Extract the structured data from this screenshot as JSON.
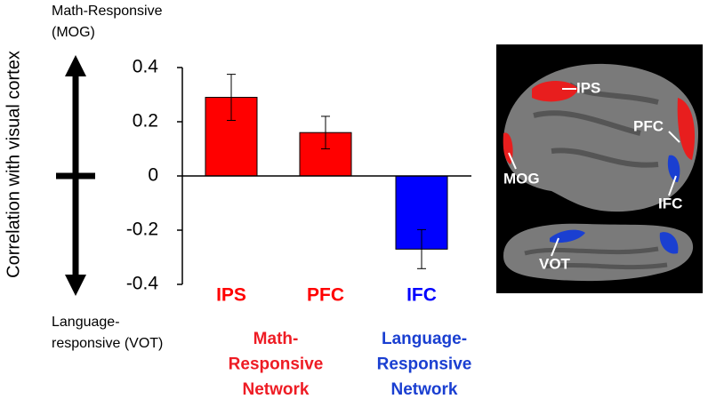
{
  "chart_data": {
    "type": "bar",
    "y_label": "Correlation with visual cortex",
    "top_annotation": [
      "Math-Responsive",
      "(MOG)"
    ],
    "bottom_annotation": [
      "Language-",
      "responsive (VOT)"
    ],
    "categories": [
      "IPS",
      "PFC",
      "IFC"
    ],
    "values": [
      0.29,
      0.16,
      -0.27
    ],
    "errors": [
      0.085,
      0.06,
      0.072
    ],
    "colors": [
      "#ff0000",
      "#ff0000",
      "#0000ff"
    ],
    "groups": [
      {
        "label": [
          "Math-",
          "Responsive",
          "Network"
        ],
        "color": "#ee1c24"
      },
      {
        "label": [
          "Language-",
          "Responsive",
          "Network"
        ],
        "color": "#1a3fd1"
      }
    ],
    "ylim": [
      -0.4,
      0.4
    ],
    "yticks": [
      0.4,
      0.2,
      0,
      -0.2,
      -0.4
    ]
  },
  "brain_image": {
    "labels": [
      "IPS",
      "PFC",
      "MOG",
      "IFC",
      "VOT"
    ]
  }
}
